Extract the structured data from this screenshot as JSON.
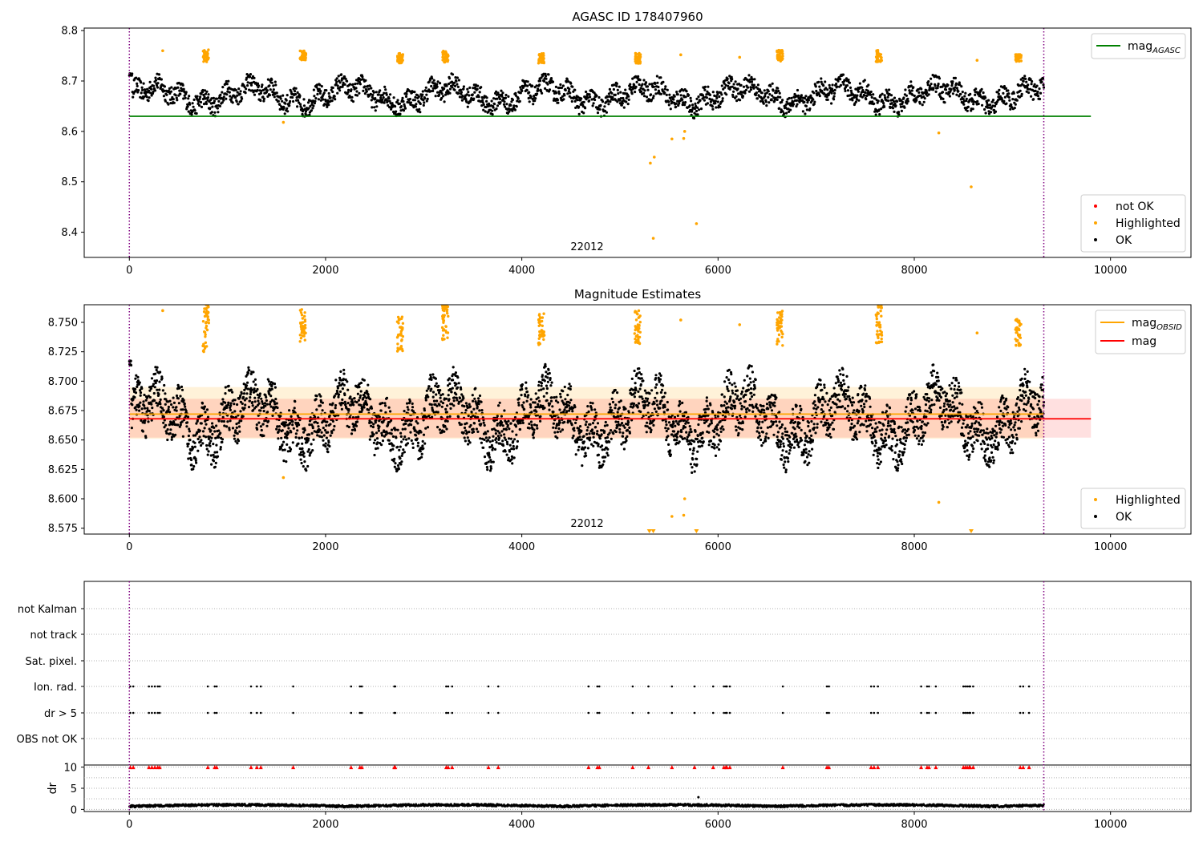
{
  "chart_data": [
    {
      "type": "scatter",
      "title": "AGASC ID 178407960",
      "annotation": "22012",
      "xlim": [
        -460,
        10820
      ],
      "ylim": [
        8.35,
        8.805
      ],
      "xticks": [
        0,
        2000,
        4000,
        6000,
        8000,
        10000
      ],
      "xtick_labels": [
        "0",
        "2000",
        "4000",
        "6000",
        "8000",
        "10000"
      ],
      "yticks": [
        8.4,
        8.5,
        8.6,
        8.7,
        8.8
      ],
      "ytick_labels": [
        "8.4",
        "8.5",
        "8.6",
        "8.7",
        "8.8"
      ],
      "vlines": [
        0,
        9320
      ],
      "hlines": [
        {
          "label": "mag",
          "sub": "AGASC",
          "y": 8.63,
          "x0": 0,
          "x1": 9800,
          "color": "#008000"
        }
      ],
      "bands": [],
      "ok_baseline": 8.672,
      "ok_ylim": [
        8.622,
        8.715
      ],
      "legend_lines": [
        {
          "label": "mag",
          "sub": "AGASC",
          "color": "#008000"
        }
      ],
      "legend_points": [
        {
          "label": "not OK",
          "color": "#ff0000"
        },
        {
          "label": "Highlighted",
          "color": "#ffa500"
        },
        {
          "label": "OK",
          "color": "#000000"
        }
      ],
      "highlighted_clusters": [
        {
          "x": 780,
          "y": 8.75,
          "spread": 0.012
        },
        {
          "x": 1770,
          "y": 8.75,
          "spread": 0.01
        },
        {
          "x": 2760,
          "y": 8.745,
          "spread": 0.01
        },
        {
          "x": 3220,
          "y": 8.748,
          "spread": 0.012
        },
        {
          "x": 4200,
          "y": 8.745,
          "spread": 0.01
        },
        {
          "x": 5180,
          "y": 8.745,
          "spread": 0.01
        },
        {
          "x": 6630,
          "y": 8.75,
          "spread": 0.012
        },
        {
          "x": 7640,
          "y": 8.75,
          "spread": 0.012
        },
        {
          "x": 9060,
          "y": 8.745,
          "spread": 0.008
        }
      ],
      "highlighted_points": [
        [
          340,
          8.76
        ],
        [
          1570,
          8.618
        ],
        [
          5310,
          8.537
        ],
        [
          5350,
          8.549
        ],
        [
          5340,
          8.388
        ],
        [
          5530,
          8.585
        ],
        [
          5650,
          8.586
        ],
        [
          5660,
          8.6
        ],
        [
          5780,
          8.417
        ],
        [
          5620,
          8.752
        ],
        [
          6220,
          8.747
        ],
        [
          8250,
          8.597
        ],
        [
          8580,
          8.49
        ],
        [
          8640,
          8.741
        ]
      ]
    },
    {
      "type": "scatter",
      "title": "Magnitude Estimates",
      "annotation": "22012",
      "xlim": [
        -460,
        10820
      ],
      "ylim": [
        8.57,
        8.765
      ],
      "xticks": [
        0,
        2000,
        4000,
        6000,
        8000,
        10000
      ],
      "xtick_labels": [
        "0",
        "2000",
        "4000",
        "6000",
        "8000",
        "10000"
      ],
      "yticks": [
        8.575,
        8.6,
        8.625,
        8.65,
        8.675,
        8.7,
        8.725,
        8.75
      ],
      "ytick_labels": [
        "8.575",
        "8.600",
        "8.625",
        "8.650",
        "8.675",
        "8.700",
        "8.725",
        "8.750"
      ],
      "vlines": [
        0,
        9320
      ],
      "hlines": [
        {
          "label": "mag",
          "sub": "OBSID",
          "y": 8.672,
          "x0": 0,
          "x1": 9320,
          "color": "#ffa500"
        },
        {
          "label": "mag",
          "sub": "",
          "y": 8.668,
          "x0": 0,
          "x1": 9800,
          "color": "#ff0000"
        }
      ],
      "bands": [
        {
          "y0": 8.651,
          "y1": 8.695,
          "x0": 0,
          "x1": 9320,
          "color": "#ffa500",
          "opacity": 0.15
        },
        {
          "y0": 8.652,
          "y1": 8.685,
          "x0": 0,
          "x1": 9800,
          "color": "#ff0000",
          "opacity": 0.12
        }
      ],
      "ok_baseline": 8.668,
      "ok_ylim": [
        8.622,
        8.718
      ],
      "legend_lines": [
        {
          "label": "mag",
          "sub": "OBSID",
          "color": "#ffa500"
        },
        {
          "label": "mag",
          "sub": "",
          "color": "#ff0000"
        }
      ],
      "legend_points": [
        {
          "label": "Highlighted",
          "color": "#ffa500"
        },
        {
          "label": "OK",
          "color": "#000000"
        }
      ],
      "highlighted_clusters": [
        {
          "x": 780,
          "y": 8.745,
          "spread": 0.02
        },
        {
          "x": 1770,
          "y": 8.748,
          "spread": 0.015
        },
        {
          "x": 2760,
          "y": 8.74,
          "spread": 0.015
        },
        {
          "x": 3220,
          "y": 8.75,
          "spread": 0.015
        },
        {
          "x": 4200,
          "y": 8.745,
          "spread": 0.015
        },
        {
          "x": 5180,
          "y": 8.745,
          "spread": 0.015
        },
        {
          "x": 6630,
          "y": 8.745,
          "spread": 0.015
        },
        {
          "x": 7640,
          "y": 8.748,
          "spread": 0.017
        },
        {
          "x": 9060,
          "y": 8.742,
          "spread": 0.012
        }
      ],
      "highlighted_points": [
        [
          340,
          8.76
        ],
        [
          1570,
          8.618
        ],
        [
          5530,
          8.585
        ],
        [
          5650,
          8.586
        ],
        [
          5660,
          8.6
        ],
        [
          5620,
          8.752
        ],
        [
          6220,
          8.748
        ],
        [
          8250,
          8.597
        ],
        [
          8640,
          8.741
        ]
      ],
      "clipped_markers": [
        5300,
        5340,
        5780,
        8580
      ]
    },
    {
      "type": "scatter",
      "xlim": [
        -460,
        10820
      ],
      "flag_rows": [
        "not Kalman",
        "not track",
        "Sat. pixel.",
        "Ion. rad.",
        "dr > 5",
        "OBS not OK"
      ],
      "flag_x": [
        10,
        40,
        200,
        230,
        260,
        290,
        310,
        800,
        870,
        890,
        1240,
        1300,
        1340,
        1670,
        2260,
        2350,
        2370,
        2700,
        2710,
        3230,
        3250,
        3290,
        3660,
        3760,
        4680,
        4770,
        4790,
        5130,
        5290,
        5530,
        5760,
        5950,
        6060,
        6080,
        6090,
        6120,
        6660,
        7110,
        7130,
        7560,
        7590,
        7630,
        8070,
        8130,
        8150,
        8220,
        8500,
        8520,
        8540,
        8560,
        8570,
        8600,
        9080,
        9110,
        9170
      ],
      "dr_ylabel": "dr",
      "dr_ylim": [
        -0.5,
        10.5
      ],
      "dr_yticks": [
        0,
        5,
        10
      ],
      "dr_ytick_labels": [
        "0",
        "5",
        "10"
      ],
      "dr_outlier": [
        5800,
        2.9
      ],
      "xticks": [
        0,
        2000,
        4000,
        6000,
        8000,
        10000
      ],
      "xtick_labels": [
        "0",
        "2000",
        "4000",
        "6000",
        "8000",
        "10000"
      ],
      "vlines": [
        0,
        9320
      ]
    }
  ],
  "colors": {
    "ok": "#000000",
    "highlighted": "#ffa500",
    "not_ok": "#ff0000",
    "vline": "#800080",
    "grid": "#b0b0b0"
  }
}
